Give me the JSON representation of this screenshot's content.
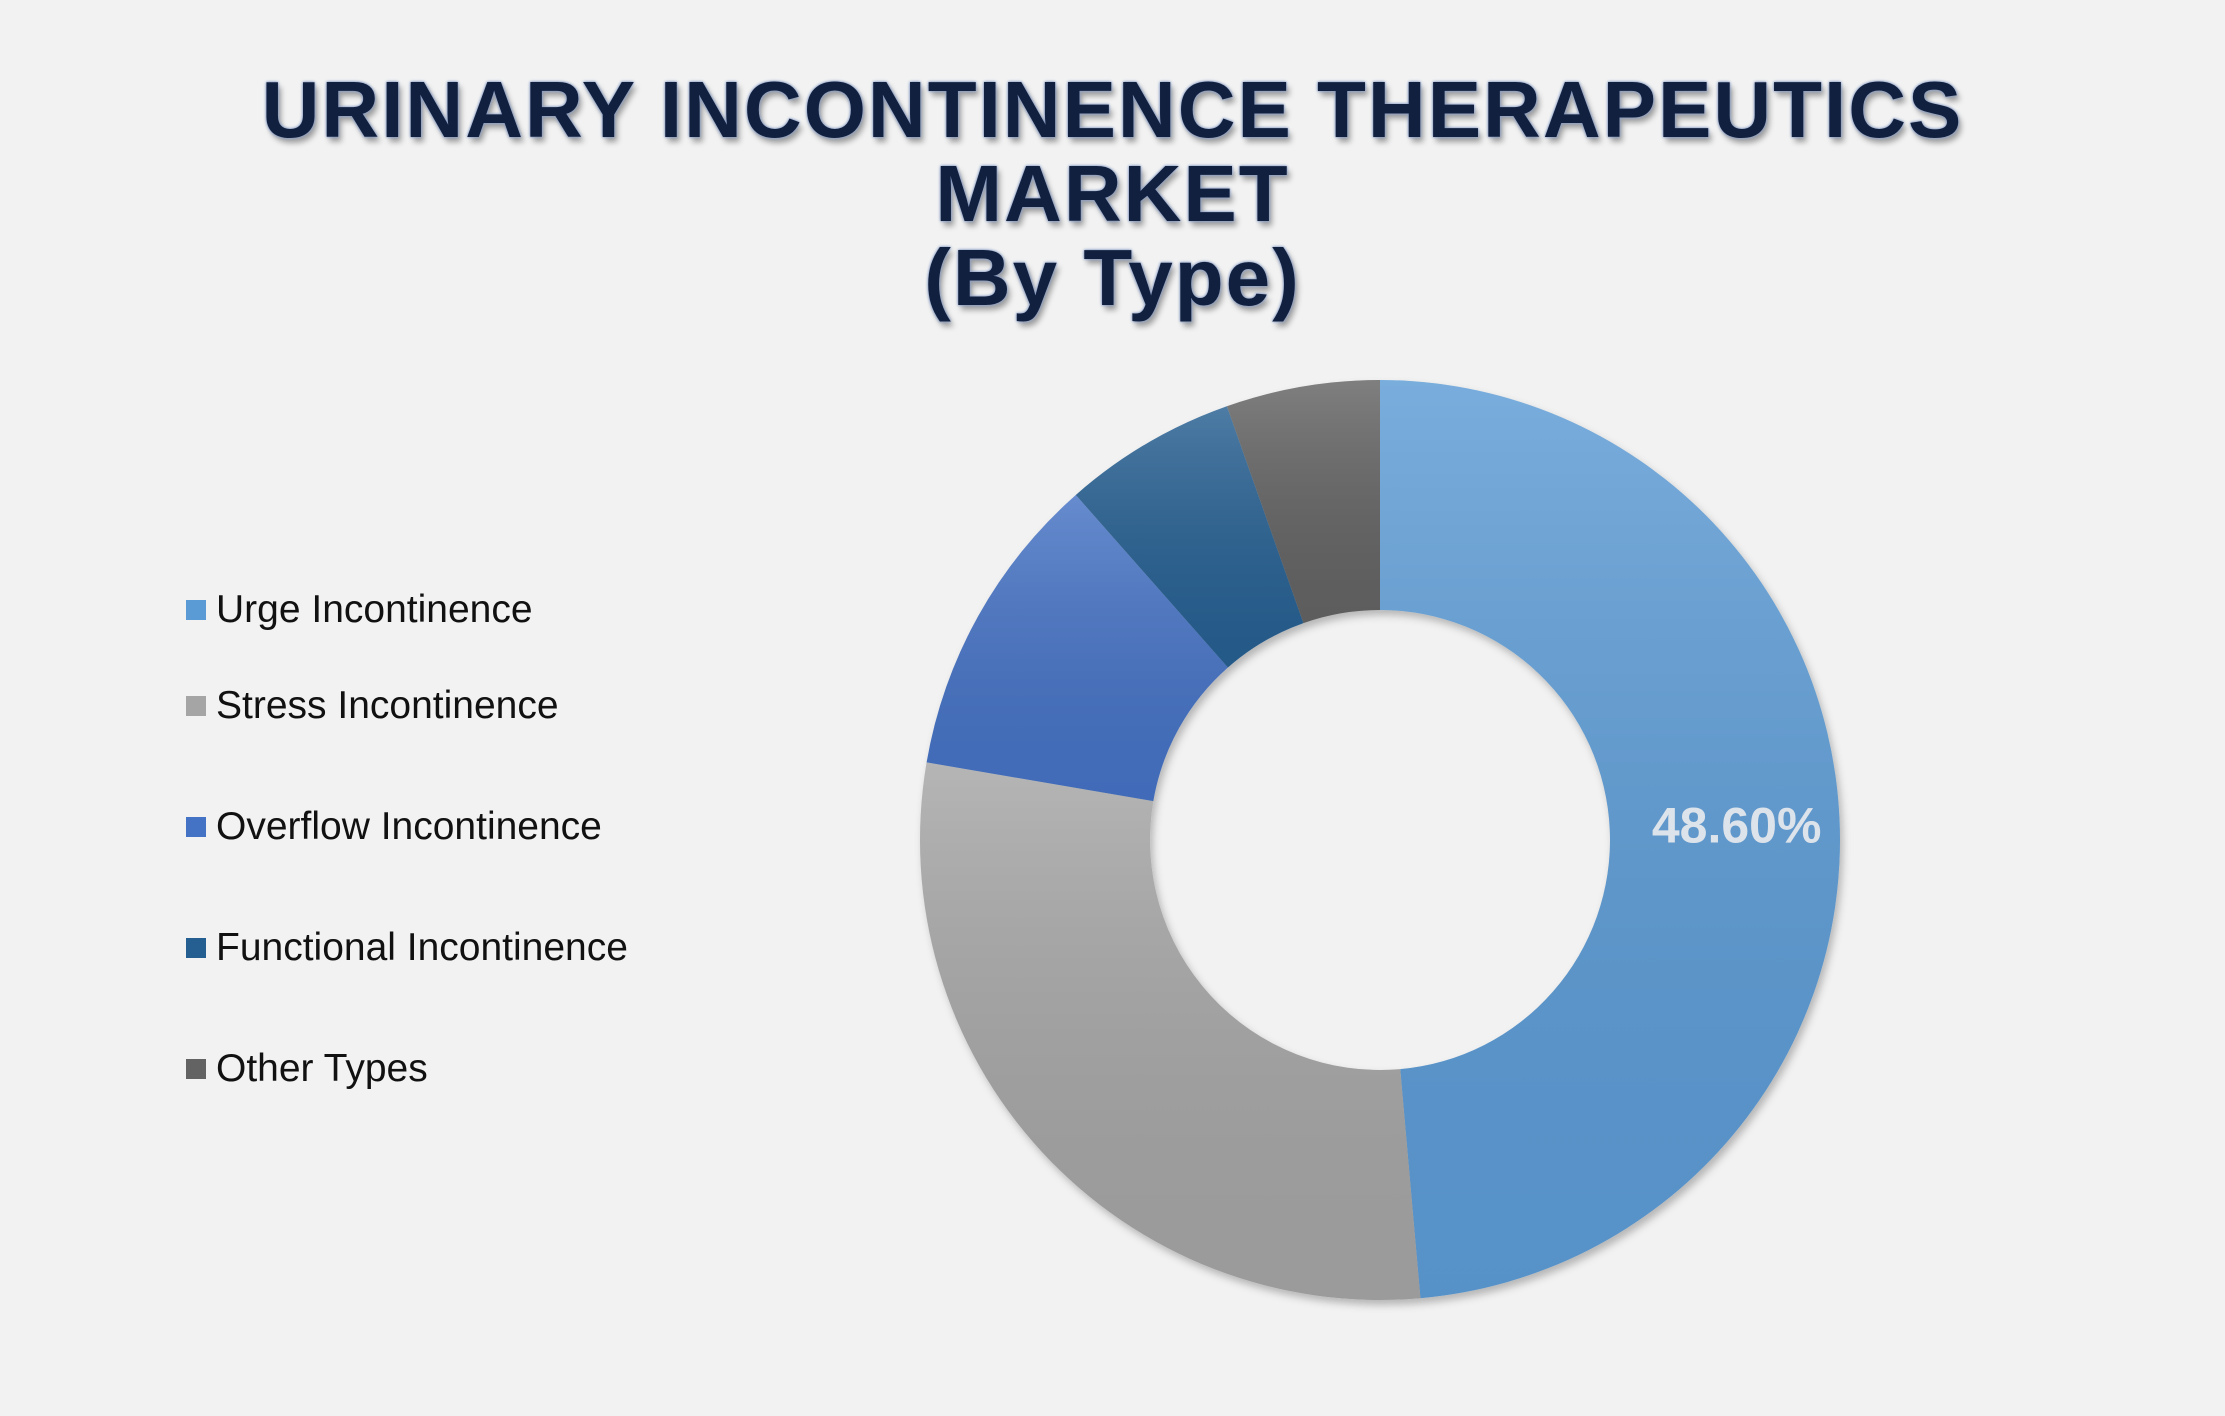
{
  "chart_data": {
    "type": "pie",
    "title_lines": [
      "URINARY INCONTINENCE THERAPEUTICS",
      "MARKET",
      "(By Type)"
    ],
    "donut": true,
    "categories": [
      "Urge Incontinence",
      "Stress Incontinence",
      "Overflow Incontinence",
      "Functional Incontinence",
      "Other Types"
    ],
    "values": [
      48.6,
      29.1,
      10.8,
      6.1,
      5.4
    ],
    "data_labels": [
      "48.60%",
      "",
      "",
      "",
      ""
    ],
    "colors": [
      "#5b9bd5",
      "#a5a5a5",
      "#4472c4",
      "#255e91",
      "#636363"
    ],
    "legend_position": "left"
  }
}
